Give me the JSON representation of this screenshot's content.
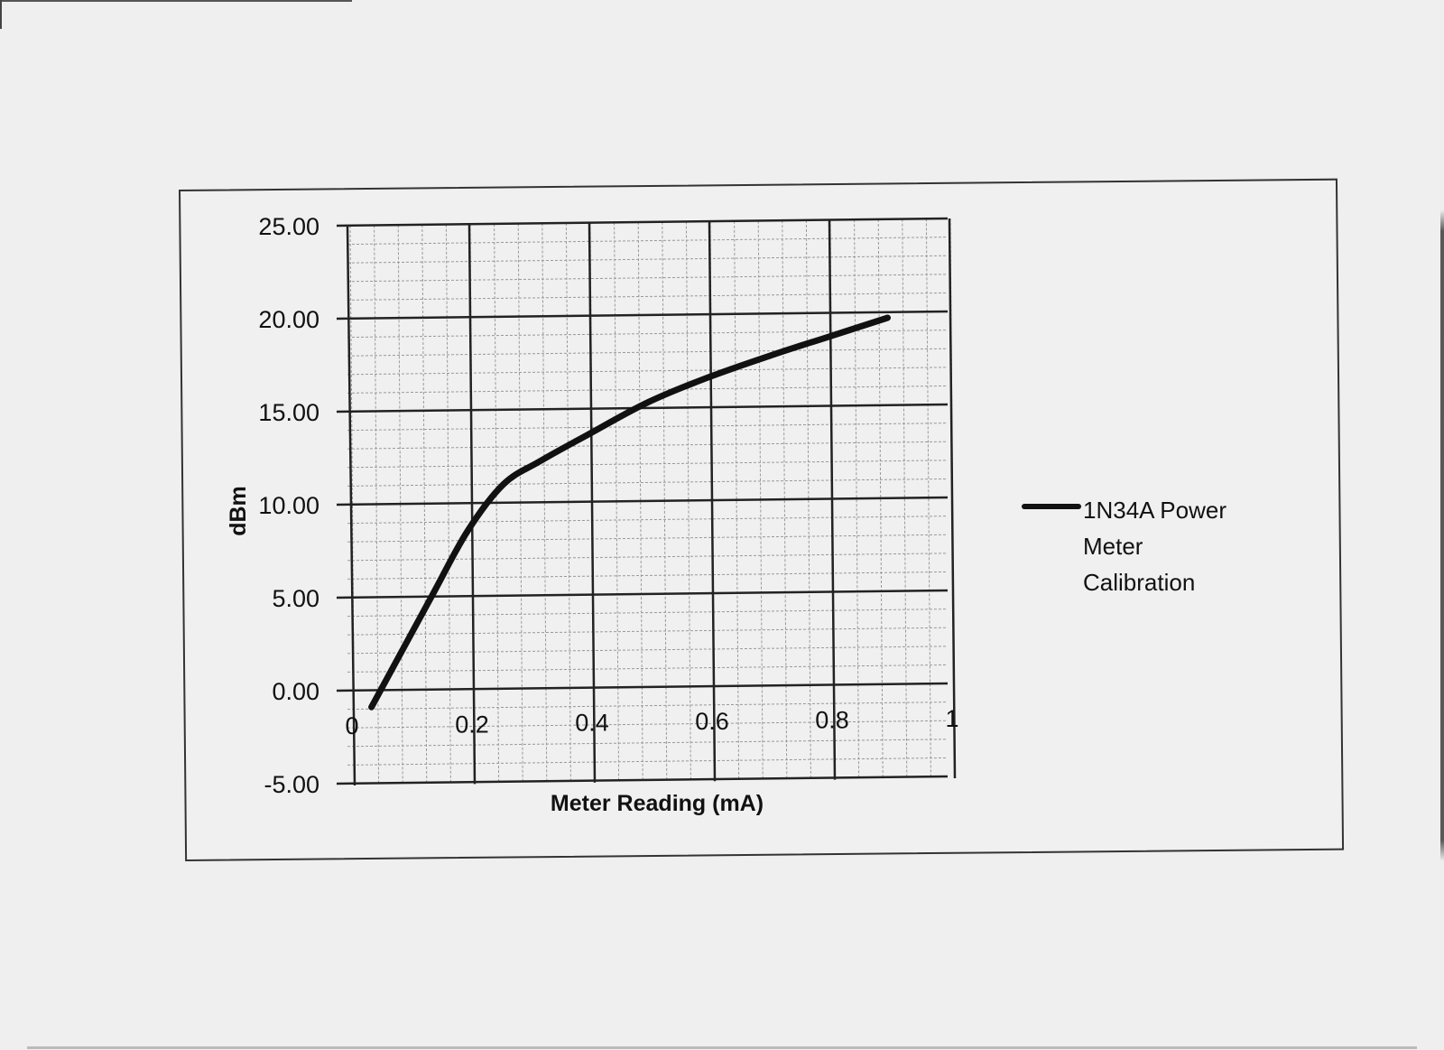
{
  "chart_data": {
    "type": "line",
    "title": "",
    "xlabel": "Meter Reading (mA)",
    "ylabel": "dBm",
    "xlim": [
      0,
      1
    ],
    "ylim": [
      -5,
      25
    ],
    "x_ticks": [
      "0",
      "0.2",
      "0.4",
      "0.6",
      "0.8",
      "1"
    ],
    "y_ticks": [
      "25.00",
      "20.00",
      "15.00",
      "10.00",
      "5.00",
      "0.00",
      "-5.00"
    ],
    "grid": {
      "major": true,
      "minor": true,
      "minor_divisions": 5
    },
    "legend_position": "right",
    "series": [
      {
        "name": "1N34A Power Meter Calibration",
        "color": "#111111",
        "x": [
          0.04,
          0.14,
          0.2,
          0.26,
          0.32,
          0.4,
          0.5,
          0.6,
          0.71,
          0.8,
          0.9
        ],
        "values": [
          -0.9,
          5.0,
          8.5,
          11.0,
          12.2,
          13.6,
          15.3,
          16.6,
          17.8,
          18.7,
          19.7
        ]
      }
    ]
  },
  "legend": {
    "line1": "1N34A Power Meter",
    "line2": "Calibration"
  }
}
